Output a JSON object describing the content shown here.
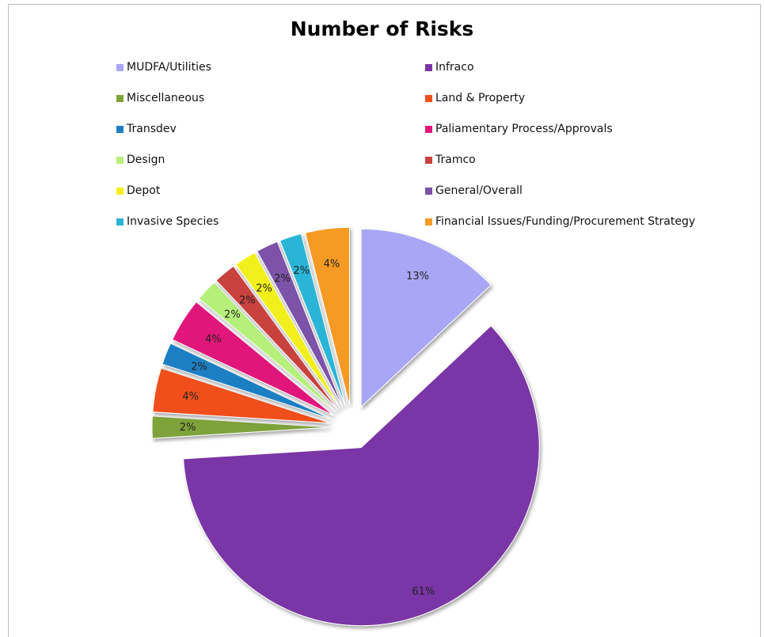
{
  "chart_data": {
    "type": "pie",
    "title": "Number of Risks",
    "legend_position": "top",
    "slices": [
      {
        "name": "MUDFA/Utilities",
        "value": 13,
        "label": "13%",
        "color": "#a9a6f5"
      },
      {
        "name": "Infraco",
        "value": 61,
        "label": "61%",
        "color": "#7a35a6"
      },
      {
        "name": "Miscellaneous",
        "value": 2,
        "label": "2%",
        "color": "#7ea33a"
      },
      {
        "name": "Land & Property",
        "value": 4,
        "label": "4%",
        "color": "#f0501c"
      },
      {
        "name": "Transdev",
        "value": 2,
        "label": "2%",
        "color": "#1e7fc4"
      },
      {
        "name": "Paliamentary Process/Approvals",
        "value": 4,
        "label": "4%",
        "color": "#e0197a"
      },
      {
        "name": "Design",
        "value": 2,
        "label": "2%",
        "color": "#b5f07a"
      },
      {
        "name": "Tramco",
        "value": 2,
        "label": "2%",
        "color": "#c9433e"
      },
      {
        "name": "Depot",
        "value": 2,
        "label": "2%",
        "color": "#f2f01c"
      },
      {
        "name": "General/Overall",
        "value": 2,
        "label": "2%",
        "color": "#7b52a8"
      },
      {
        "name": "Invasive Species",
        "value": 2,
        "label": "2%",
        "color": "#2bb5d6"
      },
      {
        "name": "Financial Issues/Funding/Procurement Strategy",
        "value": 4,
        "label": "4%",
        "color": "#f59a24"
      }
    ]
  }
}
